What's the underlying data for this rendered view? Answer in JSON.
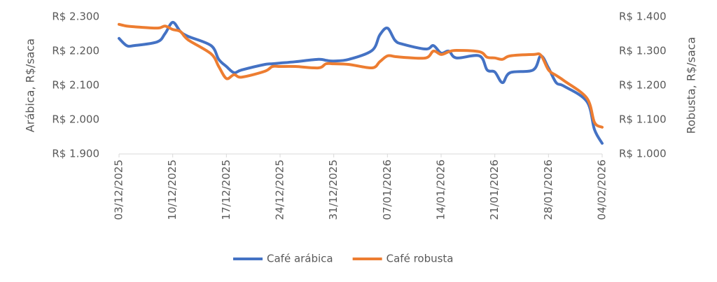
{
  "chart_data": {
    "type": "line",
    "y_label": "Arábica, R$/saca",
    "y2_label": "Robusta, R$/saca",
    "x": [
      "03/12/2025",
      "04/12/2025",
      "05/12/2025",
      "08/12/2025",
      "09/12/2025",
      "10/12/2025",
      "11/12/2025",
      "12/12/2025",
      "15/12/2025",
      "16/12/2025",
      "17/12/2025",
      "18/12/2025",
      "19/12/2025",
      "22/12/2025",
      "23/12/2025",
      "24/12/2025",
      "26/12/2025",
      "29/12/2025",
      "30/12/2025",
      "31/12/2025",
      "02/01/2026",
      "05/01/2026",
      "06/01/2026",
      "07/01/2026",
      "08/01/2026",
      "09/01/2026",
      "12/01/2026",
      "13/01/2026",
      "14/01/2026",
      "15/01/2026",
      "16/01/2026",
      "19/01/2026",
      "20/01/2026",
      "21/01/2026",
      "22/01/2026",
      "23/01/2026",
      "26/01/2026",
      "27/01/2026",
      "28/01/2026",
      "29/01/2026",
      "30/01/2026",
      "02/02/2026",
      "03/02/2026",
      "04/02/2026"
    ],
    "series": [
      {
        "name": "Café arábica",
        "color": "#4472c4",
        "axis": "y",
        "values": [
          2237,
          2216,
          2216,
          2227,
          2251,
          2284,
          2257,
          2243,
          2216,
          2176,
          2155,
          2137,
          2145,
          2161,
          2163,
          2165,
          2169,
          2176,
          2173,
          2171,
          2176,
          2202,
          2247,
          2267,
          2231,
          2220,
          2206,
          2216,
          2194,
          2200,
          2180,
          2186,
          2145,
          2139,
          2108,
          2137,
          2145,
          2186,
          2151,
          2108,
          2098,
          2053,
          1971,
          1931
        ]
      },
      {
        "name": "Café robusta",
        "color": "#ed7d31",
        "axis": "y2",
        "values": [
          1378,
          1373,
          1371,
          1367,
          1373,
          1363,
          1357,
          1333,
          1292,
          1255,
          1220,
          1231,
          1224,
          1241,
          1255,
          1255,
          1255,
          1251,
          1263,
          1263,
          1261,
          1251,
          1269,
          1286,
          1284,
          1282,
          1280,
          1300,
          1290,
          1298,
          1302,
          1298,
          1282,
          1280,
          1276,
          1286,
          1290,
          1288,
          1245,
          1229,
          1214,
          1163,
          1092,
          1078
        ]
      }
    ],
    "xlim": [
      "03/12/2025",
      "04/02/2026"
    ],
    "xticks": [
      "03/12/2025",
      "10/12/2025",
      "17/12/2025",
      "24/12/2025",
      "31/12/2025",
      "07/01/2026",
      "14/01/2026",
      "21/01/2026",
      "28/01/2026",
      "04/02/2026"
    ],
    "ylim": [
      1900,
      2300
    ],
    "yticks": [
      {
        "value": 1900,
        "label": "R$ 1.900"
      },
      {
        "value": 2000,
        "label": "R$ 2.000"
      },
      {
        "value": 2100,
        "label": "R$ 2.100"
      },
      {
        "value": 2200,
        "label": "R$ 2.200"
      },
      {
        "value": 2300,
        "label": "R$ 2.300"
      }
    ],
    "y2lim": [
      1000,
      1400
    ],
    "y2ticks": [
      {
        "value": 1000,
        "label": "R$ 1.000"
      },
      {
        "value": 1100,
        "label": "R$ 1.100"
      },
      {
        "value": 1200,
        "label": "R$ 1.200"
      },
      {
        "value": 1300,
        "label": "R$ 1.300"
      },
      {
        "value": 1400,
        "label": "R$ 1.400"
      }
    ],
    "legend": "bottom"
  }
}
